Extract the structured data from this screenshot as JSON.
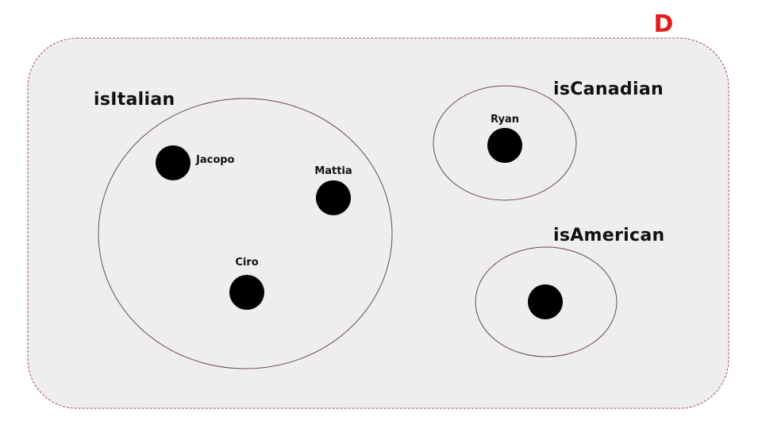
{
  "colors": {
    "domain_fill": "#efeeef",
    "domain_border": "#a84a4a",
    "set_border": "#6b4a4a",
    "element_fill": "#000000",
    "domain_label": "#e0201e"
  },
  "domain": {
    "label": "D"
  },
  "sets": [
    {
      "label": "isItalian",
      "elements": [
        {
          "label": "Jacopo"
        },
        {
          "label": "Mattia"
        },
        {
          "label": "Ciro"
        }
      ]
    },
    {
      "label": "isCanadian",
      "elements": [
        {
          "label": "Ryan"
        }
      ]
    },
    {
      "label": "isAmerican",
      "elements": [
        {
          "label": ""
        }
      ]
    }
  ]
}
